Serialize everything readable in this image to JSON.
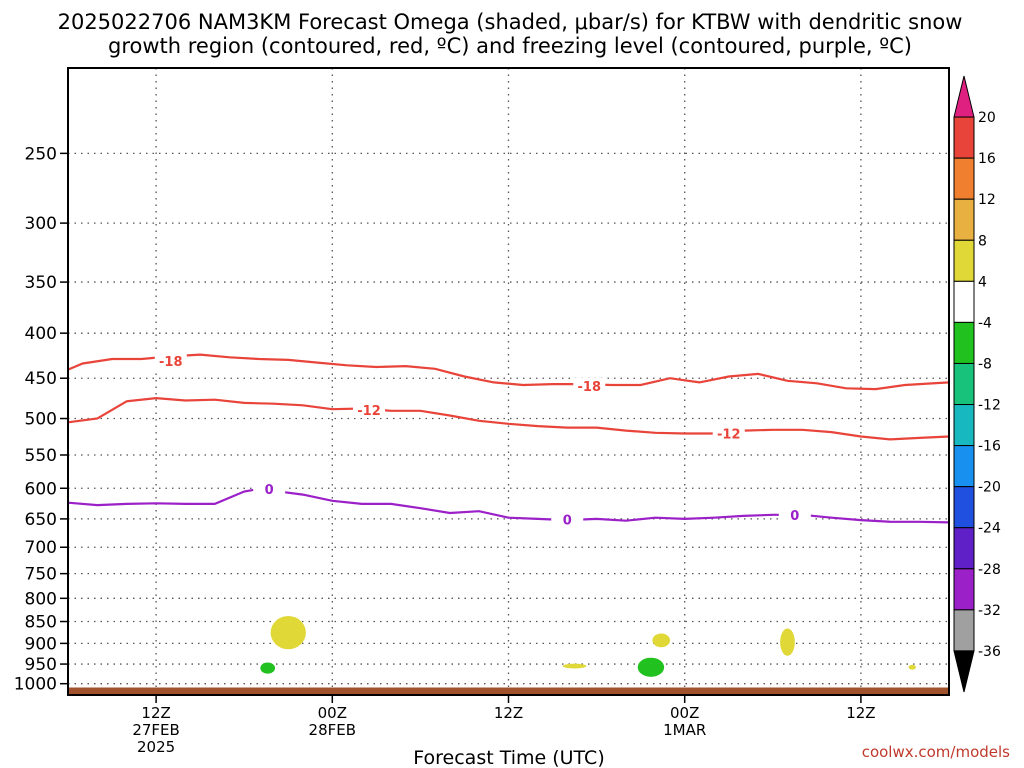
{
  "chart_data": {
    "type": "contour",
    "title_line1": "2025022706 NAM3KM Forecast Omega (shaded, μbar/s) for KTBW with dendritic snow",
    "title_line2": "growth region (contoured, red, ºC) and freezing level (contoured, purple, ºC)",
    "xlabel": "Forecast Time (UTC)",
    "credit": "coolwx.com/models",
    "x_range_hours": [
      -12,
      48
    ],
    "y_range_hpa": [
      200,
      1030
    ],
    "y_scale": "log-pressure",
    "y_ticks": [
      250,
      300,
      350,
      400,
      450,
      500,
      550,
      600,
      650,
      700,
      750,
      800,
      850,
      900,
      950,
      1000
    ],
    "x_ticks": [
      {
        "hour": -6,
        "label": "12Z",
        "label2": "27FEB",
        "label3": "2025"
      },
      {
        "hour": 6,
        "label": "00Z",
        "label2": "28FEB",
        "label3": ""
      },
      {
        "hour": 18,
        "label": "12Z",
        "label2": "",
        "label3": ""
      },
      {
        "hour": 30,
        "label": "00Z",
        "label2": "1MAR",
        "label3": ""
      },
      {
        "hour": 42,
        "label": "12Z",
        "label2": "",
        "label3": ""
      }
    ],
    "grid": true,
    "contours": [
      {
        "label": "-18",
        "color": "#e8443a",
        "x": [
          -12,
          -11,
          -9,
          -7,
          -5,
          -3,
          -1,
          1,
          3,
          5,
          7,
          9,
          11,
          13,
          15,
          17,
          19,
          21,
          23,
          25,
          27,
          29,
          31,
          33,
          35,
          37,
          39,
          41,
          43,
          45,
          48
        ],
        "y": [
          440,
          433,
          428,
          428,
          425,
          423,
          426,
          428,
          429,
          432,
          435,
          437,
          436,
          439,
          448,
          455,
          458,
          457,
          457,
          458,
          458,
          450,
          455,
          448,
          445,
          453,
          456,
          462,
          463,
          458,
          455
        ],
        "label_at": [
          [
            -5,
            430
          ],
          [
            23.5,
            459
          ]
        ]
      },
      {
        "label": "-12",
        "color": "#e8443a",
        "x": [
          -12,
          -10,
          -8,
          -6,
          -4,
          -2,
          0,
          2,
          4,
          6,
          8,
          10,
          12,
          14,
          16,
          18,
          20,
          22,
          24,
          26,
          28,
          30,
          32,
          34,
          36,
          38,
          40,
          42,
          44,
          46,
          48
        ],
        "y": [
          505,
          500,
          478,
          474,
          477,
          476,
          480,
          481,
          483,
          488,
          487,
          490,
          490,
          496,
          503,
          507,
          510,
          512,
          512,
          516,
          519,
          520,
          520,
          516,
          515,
          515,
          518,
          524,
          528,
          526,
          524
        ],
        "label_at": [
          [
            8.5,
            489
          ],
          [
            33,
            520
          ]
        ]
      },
      {
        "label": "0",
        "color": "#9b20c8",
        "x": [
          -12,
          -10,
          -8,
          -6,
          -4,
          -2,
          0,
          1,
          2,
          4,
          6,
          8,
          10,
          12,
          14,
          16,
          18,
          20,
          22,
          24,
          26,
          28,
          30,
          32,
          34,
          36,
          38,
          40,
          42,
          44,
          46,
          48
        ],
        "y": [
          623,
          627,
          625,
          624,
          625,
          625,
          605,
          601,
          604,
          610,
          620,
          625,
          625,
          632,
          640,
          637,
          648,
          650,
          652,
          650,
          653,
          648,
          650,
          648,
          645,
          643,
          643,
          648,
          652,
          655,
          655,
          656
        ],
        "label_at": [
          [
            1.7,
            601
          ],
          [
            22,
            651
          ],
          [
            37.5,
            643
          ]
        ]
      }
    ],
    "shaded_blobs": [
      {
        "level": "4 to 8",
        "color": "#e0d836",
        "cx": 3.0,
        "cy": 875,
        "rx": 1.2,
        "ry": 38
      },
      {
        "level": "-4 to -8",
        "color": "#21c21f",
        "cx": 1.6,
        "cy": 960,
        "rx": 0.5,
        "ry": 14
      },
      {
        "level": "4 to 8",
        "color": "#e0d836",
        "cx": 22.5,
        "cy": 955,
        "rx": 0.8,
        "ry": 6
      },
      {
        "level": "-4 to -8",
        "color": "#21c21f",
        "cx": 27.7,
        "cy": 958,
        "rx": 0.9,
        "ry": 24
      },
      {
        "level": "4 to 8",
        "color": "#e0d836",
        "cx": 28.4,
        "cy": 893,
        "rx": 0.6,
        "ry": 16
      },
      {
        "level": "4 to 8",
        "color": "#e0d836",
        "cx": 37.0,
        "cy": 897,
        "rx": 0.5,
        "ry": 32
      },
      {
        "level": "4 to 8",
        "color": "#e0d836",
        "cx": 45.5,
        "cy": 958,
        "rx": 0.25,
        "ry": 6
      }
    ],
    "ground_color": "#a0522d",
    "ground_from_hpa": 1010,
    "colorbar": {
      "levels": [
        "20",
        "16",
        "12",
        "8",
        "4",
        "-4",
        "-8",
        "-12",
        "-16",
        "-20",
        "-24",
        "-28",
        "-32",
        "-36"
      ],
      "colors": [
        "#e02080",
        "#e8443a",
        "#f08030",
        "#e8b040",
        "#e0d836",
        "#ffffff",
        "#21c21f",
        "#18c27a",
        "#18b8c0",
        "#1890f0",
        "#2050e0",
        "#6020c8",
        "#9b20c8",
        "#a0a0a0",
        "#000000"
      ]
    }
  }
}
